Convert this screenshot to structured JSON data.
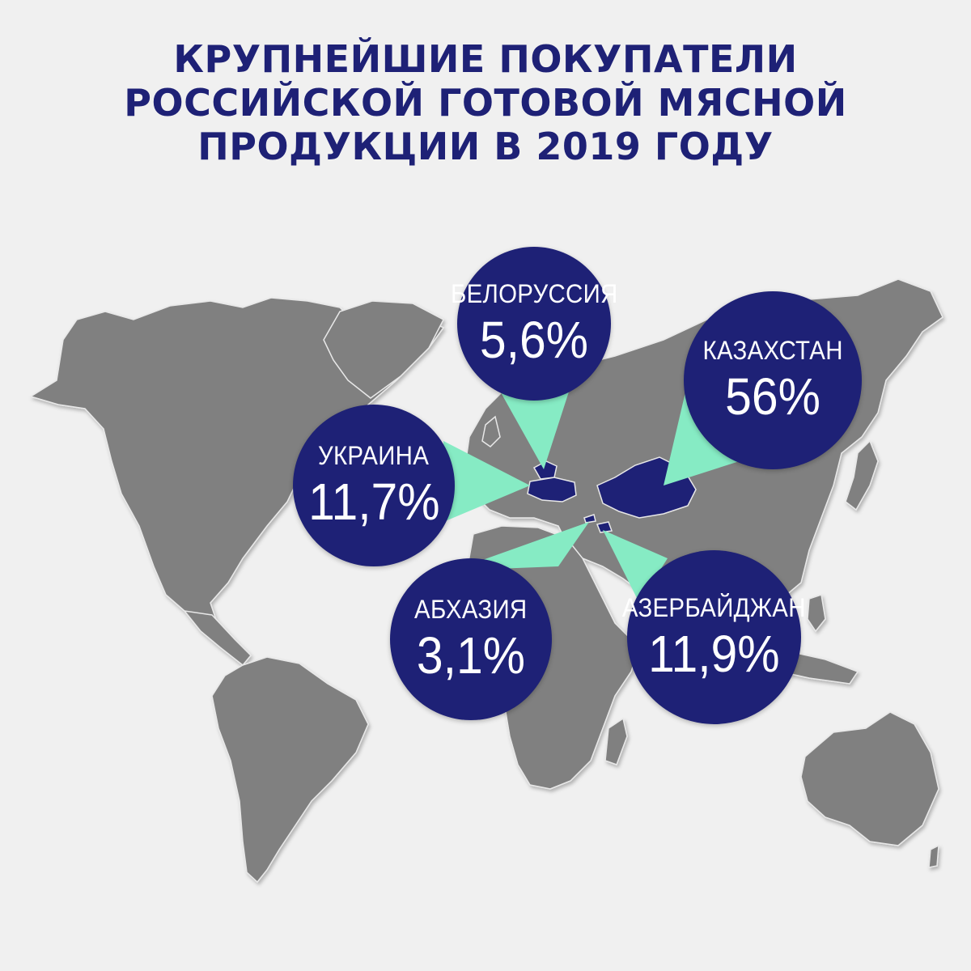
{
  "title": {
    "lines": [
      "КРУПНЕЙШИЕ ПОКУПАТЕЛИ",
      "РОССИЙСКОЙ ГОТОВОЙ МЯСНОЙ",
      "ПРОДУКЦИИ В 2019 ГОДУ"
    ]
  },
  "colors": {
    "background": "#f0f0f0",
    "land": "#808080",
    "highlight": "#1e2176",
    "pointer": "#86ebc4",
    "title": "#1e2176"
  },
  "buyers": [
    {
      "country": "БЕЛОРУССИЯ",
      "value": "5,6%"
    },
    {
      "country": "КАЗАХСТАН",
      "value": "56%"
    },
    {
      "country": "УКРАИНА",
      "value": "11,7%"
    },
    {
      "country": "АБХАЗИЯ",
      "value": "3,1%"
    },
    {
      "country": "АЗЕРБАЙДЖАН",
      "value": "11,9%"
    }
  ]
}
